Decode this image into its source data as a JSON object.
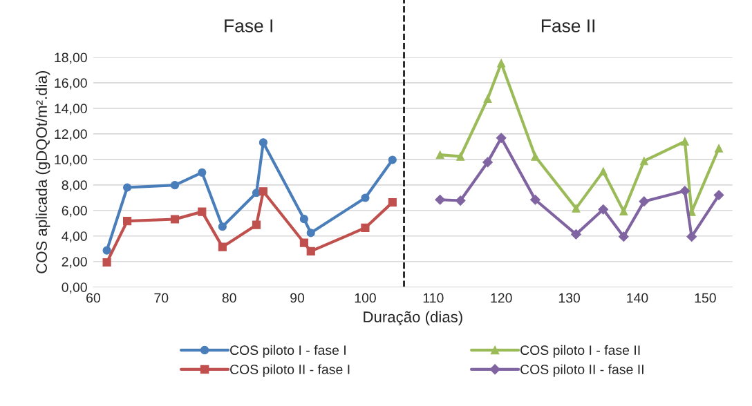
{
  "chart_data": {
    "type": "line",
    "xlabel": "Duração (dias)",
    "ylabel": "COS aplicada (gDQOt/m².dia)",
    "xlim": [
      60,
      154
    ],
    "xticks": [
      60,
      70,
      80,
      90,
      100,
      110,
      120,
      130,
      140,
      150
    ],
    "ylim": [
      0,
      18
    ],
    "yticks": [
      {
        "value": 0,
        "label": "0,00"
      },
      {
        "value": 2,
        "label": "2,00"
      },
      {
        "value": 4,
        "label": "4,00"
      },
      {
        "value": 6,
        "label": "6,00"
      },
      {
        "value": 8,
        "label": "8,00"
      },
      {
        "value": 10,
        "label": "10,00"
      },
      {
        "value": 12,
        "label": "12,00"
      },
      {
        "value": 14,
        "label": "14,00"
      },
      {
        "value": 16,
        "label": "16,00"
      },
      {
        "value": 18,
        "label": "18,00"
      }
    ],
    "grid": "y",
    "legend": "bottom",
    "line_style": "solid",
    "annotations": [
      "Fase I",
      "Fase II"
    ],
    "ref_lines": [
      {
        "axis": "x",
        "value": 105.7,
        "label": null,
        "color": "#000000",
        "line_style": "dashed"
      }
    ],
    "series": [
      {
        "name": "COS piloto I - fase I",
        "color": "#4a7ebb",
        "marker": "circle",
        "x": [
          62,
          65,
          72,
          76,
          79,
          84,
          85,
          91,
          92,
          100,
          104
        ],
        "values": [
          2.87,
          7.8,
          7.98,
          8.97,
          4.73,
          7.38,
          11.32,
          5.33,
          4.24,
          6.99,
          9.96
        ]
      },
      {
        "name": "COS piloto I - fase II",
        "color": "#9bbb59",
        "marker": "triangle",
        "x": [
          111,
          114,
          118,
          120,
          125,
          131,
          135,
          138,
          141,
          147,
          148,
          152
        ],
        "values": [
          10.36,
          10.23,
          14.75,
          17.54,
          10.23,
          6.17,
          9.06,
          5.94,
          9.87,
          11.41,
          5.9,
          10.87
        ]
      },
      {
        "name": "COS piloto II - fase I",
        "color": "#c0504d",
        "marker": "square",
        "x": [
          62,
          65,
          72,
          76,
          79,
          84,
          85,
          91,
          92,
          100,
          104
        ],
        "values": [
          1.93,
          5.17,
          5.31,
          5.9,
          3.14,
          4.87,
          7.49,
          3.47,
          2.8,
          4.64,
          6.63
        ]
      },
      {
        "name": "COS piloto II - fase II",
        "color": "#8064a2",
        "marker": "diamond",
        "x": [
          111,
          114,
          118,
          120,
          125,
          131,
          135,
          138,
          141,
          147,
          148,
          152
        ],
        "values": [
          6.84,
          6.77,
          9.78,
          11.68,
          6.84,
          4.13,
          6.08,
          3.95,
          6.71,
          7.53,
          3.95,
          7.2
        ]
      }
    ]
  }
}
